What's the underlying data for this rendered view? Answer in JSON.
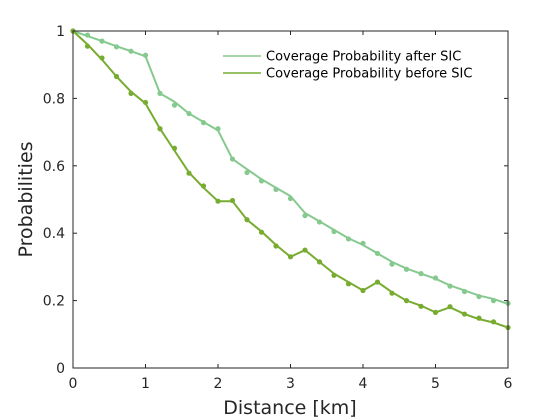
{
  "chart_data": {
    "type": "line",
    "title": "",
    "xlabel": "Distance [km]",
    "ylabel": "Probabilities",
    "xlim": [
      0,
      6
    ],
    "ylim": [
      0,
      1
    ],
    "xticks": [
      "0",
      "1",
      "2",
      "3",
      "4",
      "5",
      "6"
    ],
    "yticks": [
      "0",
      "0.2",
      "0.4",
      "0.6",
      "0.8",
      "1"
    ],
    "grid": false,
    "legend_position": "top-right",
    "x": [
      0,
      0.2,
      0.4,
      0.6,
      0.8,
      1.0,
      1.2,
      1.4,
      1.6,
      1.8,
      2.0,
      2.2,
      2.4,
      2.6,
      2.8,
      3.0,
      3.2,
      3.4,
      3.6,
      3.8,
      4.0,
      4.2,
      4.4,
      4.6,
      4.8,
      5.0,
      5.2,
      5.4,
      5.6,
      5.8,
      6.0
    ],
    "series": [
      {
        "name": "Coverage Probability after SIC",
        "color": "#86c98f",
        "line": [
          1.0,
          0.985,
          0.97,
          0.955,
          0.94,
          0.925,
          0.815,
          0.79,
          0.755,
          0.73,
          0.705,
          0.62,
          0.59,
          0.56,
          0.535,
          0.51,
          0.46,
          0.435,
          0.41,
          0.385,
          0.365,
          0.34,
          0.315,
          0.295,
          0.28,
          0.265,
          0.245,
          0.23,
          0.215,
          0.205,
          0.19
        ],
        "markers": [
          1.0,
          0.988,
          0.97,
          0.953,
          0.94,
          0.928,
          0.815,
          0.78,
          0.755,
          0.728,
          0.71,
          0.62,
          0.58,
          0.555,
          0.53,
          0.503,
          0.452,
          0.433,
          0.405,
          0.383,
          0.37,
          0.34,
          0.308,
          0.293,
          0.28,
          0.267,
          0.243,
          0.227,
          0.212,
          0.2,
          0.192
        ]
      },
      {
        "name": "Coverage Probability before SIC",
        "color": "#77ac30",
        "line": [
          1.0,
          0.96,
          0.915,
          0.865,
          0.82,
          0.785,
          0.71,
          0.645,
          0.58,
          0.535,
          0.495,
          0.495,
          0.44,
          0.405,
          0.365,
          0.33,
          0.35,
          0.315,
          0.28,
          0.255,
          0.23,
          0.255,
          0.225,
          0.2,
          0.185,
          0.165,
          0.18,
          0.16,
          0.145,
          0.135,
          0.12
        ],
        "markers": [
          1.0,
          0.955,
          0.92,
          0.865,
          0.815,
          0.788,
          0.71,
          0.652,
          0.578,
          0.54,
          0.495,
          0.497,
          0.44,
          0.403,
          0.362,
          0.33,
          0.35,
          0.315,
          0.275,
          0.25,
          0.23,
          0.255,
          0.222,
          0.2,
          0.183,
          0.165,
          0.182,
          0.16,
          0.148,
          0.137,
          0.12
        ]
      }
    ]
  }
}
